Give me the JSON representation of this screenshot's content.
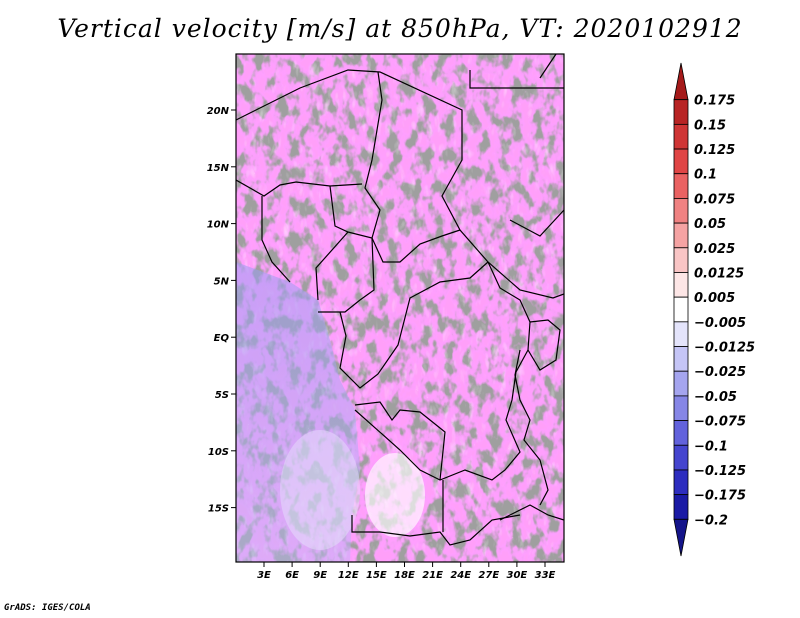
{
  "title": "Vertical velocity [m/s] at 850hPa, VT: 2020102912",
  "credit": "GrADS: IGES/COLA",
  "map": {
    "lat_ticks": [
      "20N",
      "15N",
      "10N",
      "5N",
      "EQ",
      "5S",
      "10S",
      "15S"
    ],
    "lon_ticks": [
      "3E",
      "6E",
      "9E",
      "12E",
      "15E",
      "18E",
      "21E",
      "24E",
      "27E",
      "30E",
      "33E"
    ]
  },
  "colorbar": {
    "labels": [
      "0.175",
      "0.15",
      "0.125",
      "0.1",
      "0.075",
      "0.05",
      "0.025",
      "0.0125",
      "0.005",
      "−0.005",
      "−0.0125",
      "−0.025",
      "−0.05",
      "−0.075",
      "−0.1",
      "−0.125",
      "−0.175",
      "−0.2"
    ],
    "colors": [
      "#a51a1a",
      "#b82424",
      "#cf3535",
      "#e04545",
      "#ea6262",
      "#f08282",
      "#f5a3a3",
      "#f9c5c5",
      "#fde6e6",
      "#ffffff",
      "#e4e4fb",
      "#c5c5f6",
      "#a5a5ef",
      "#8686e6",
      "#6262dc",
      "#4545cf",
      "#2d2dbf",
      "#1a1aa5",
      "#14148a"
    ]
  }
}
